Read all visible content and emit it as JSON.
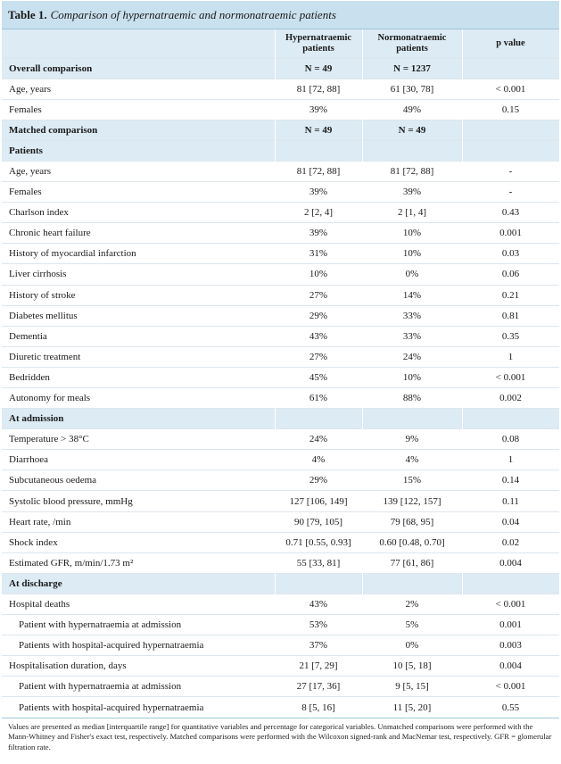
{
  "table": {
    "label": "Table 1.",
    "caption": "Comparison of hypernatraemic and normonatraemic patients",
    "headers": [
      "",
      "Hypernatraemic patients",
      "Normonatraemic patients",
      "p value"
    ],
    "rows": [
      {
        "type": "section",
        "cells": [
          "Overall comparison",
          "N = 49",
          "N = 1237",
          ""
        ]
      },
      {
        "type": "data",
        "cells": [
          "Age, years",
          "81 [72, 88]",
          "61 [30, 78]",
          "< 0.001"
        ]
      },
      {
        "type": "data",
        "cells": [
          "Females",
          "39%",
          "49%",
          "0.15"
        ]
      },
      {
        "type": "section",
        "cells": [
          "Matched comparison",
          "N = 49",
          "N = 49",
          ""
        ]
      },
      {
        "type": "section",
        "cells": [
          "Patients",
          "",
          "",
          ""
        ]
      },
      {
        "type": "data",
        "cells": [
          "Age, years",
          "81 [72, 88]",
          "81 [72, 88]",
          "-"
        ]
      },
      {
        "type": "data",
        "cells": [
          "Females",
          "39%",
          "39%",
          "-"
        ]
      },
      {
        "type": "data",
        "cells": [
          "Charlson index",
          "2 [2, 4]",
          "2 [1, 4]",
          "0.43"
        ]
      },
      {
        "type": "data",
        "cells": [
          "Chronic heart failure",
          "39%",
          "10%",
          "0.001"
        ]
      },
      {
        "type": "data",
        "cells": [
          "History of myocardial infarction",
          "31%",
          "10%",
          "0.03"
        ]
      },
      {
        "type": "data",
        "cells": [
          "Liver cirrhosis",
          "10%",
          "0%",
          "0.06"
        ]
      },
      {
        "type": "data",
        "cells": [
          "History of stroke",
          "27%",
          "14%",
          "0.21"
        ]
      },
      {
        "type": "data",
        "cells": [
          "Diabetes mellitus",
          "29%",
          "33%",
          "0.81"
        ]
      },
      {
        "type": "data",
        "cells": [
          "Dementia",
          "43%",
          "33%",
          "0.35"
        ]
      },
      {
        "type": "data",
        "cells": [
          "Diuretic treatment",
          "27%",
          "24%",
          "1"
        ]
      },
      {
        "type": "data",
        "cells": [
          "Bedridden",
          "45%",
          "10%",
          "< 0.001"
        ]
      },
      {
        "type": "data",
        "cells": [
          "Autonomy for meals",
          "61%",
          "88%",
          "0.002"
        ]
      },
      {
        "type": "section",
        "cells": [
          "At admission",
          "",
          "",
          ""
        ]
      },
      {
        "type": "data",
        "cells": [
          "Temperature > 38°C",
          "24%",
          "9%",
          "0.08"
        ]
      },
      {
        "type": "data",
        "cells": [
          "Diarrhoea",
          "4%",
          "4%",
          "1"
        ]
      },
      {
        "type": "data",
        "cells": [
          "Subcutaneous oedema",
          "29%",
          "15%",
          "0.14"
        ]
      },
      {
        "type": "data",
        "cells": [
          "Systolic blood pressure, mmHg",
          "127 [106, 149]",
          "139 [122, 157]",
          "0.11"
        ]
      },
      {
        "type": "data",
        "cells": [
          "Heart rate, /min",
          "90 [79, 105]",
          "79 [68, 95]",
          "0.04"
        ]
      },
      {
        "type": "data",
        "cells": [
          "Shock index",
          "0.71 [0.55, 0.93]",
          "0.60 [0.48, 0.70]",
          "0.02"
        ]
      },
      {
        "type": "data",
        "cells": [
          "Estimated GFR, m/min/1.73 m²",
          "55 [33, 81]",
          "77 [61, 86]",
          "0.004"
        ]
      },
      {
        "type": "section",
        "cells": [
          "At discharge",
          "",
          "",
          ""
        ]
      },
      {
        "type": "data",
        "cells": [
          "Hospital deaths",
          "43%",
          "2%",
          "< 0.001"
        ]
      },
      {
        "type": "indent",
        "cells": [
          "Patient with hypernatraemia at admission",
          "53%",
          "5%",
          "0.001"
        ]
      },
      {
        "type": "indent",
        "cells": [
          "Patients with hospital-acquired hypernatraemia",
          "37%",
          "0%",
          "0.003"
        ]
      },
      {
        "type": "data",
        "cells": [
          "Hospitalisation duration, days",
          "21 [7, 29]",
          "10 [5, 18]",
          "0.004"
        ]
      },
      {
        "type": "indent",
        "cells": [
          "Patient with hypernatraemia at admission",
          "27 [17, 36]",
          "9 [5, 15]",
          "< 0.001"
        ]
      },
      {
        "type": "indent",
        "cells": [
          "Patients with hospital-acquired hypernatraemia",
          "8 [5, 16]",
          "11 [5, 20]",
          "0.55"
        ]
      }
    ],
    "footnote": "Values are presented as median [interquartile range] for quantitative variables and percentage for categorical variables. Unmatched comparisons were performed with the Mann-Whitney and Fisher's exact test, respectively. Matched comparisons were performed with the Wilcoxon signed-rank and MacNemar test, respectively. GFR = glomerular filtration rate."
  }
}
